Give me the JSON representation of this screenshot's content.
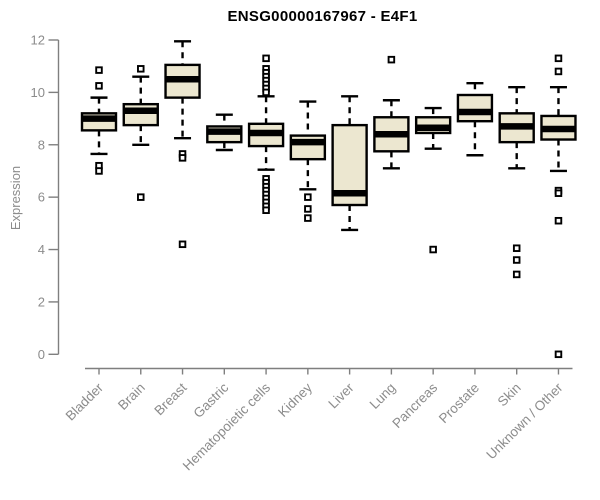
{
  "chart_data": {
    "type": "boxplot",
    "title": "ENSG00000167967 - E4F1",
    "ylabel": "Expression",
    "xlabel": "",
    "ylim": [
      0,
      12
    ],
    "yticks": [
      0,
      2,
      4,
      6,
      8,
      10,
      12
    ],
    "grid": false,
    "legend": "none",
    "colors": {
      "box_fill": "#ECE7D0",
      "box_border": "#000000",
      "median": "#000000",
      "whisker": "#000000",
      "outlier": "#000000",
      "axis": "#7f7f7f",
      "tick_label": "#8c8c8c",
      "title": "#000000",
      "background": "#ffffff"
    },
    "categories": [
      "Bladder",
      "Brain",
      "Breast",
      "Gastric",
      "Hematopoietic cells",
      "Kidney",
      "Liver",
      "Lung",
      "Pancreas",
      "Prostate",
      "Skin",
      "Unknown / Other"
    ],
    "series": [
      {
        "name": "Bladder",
        "whisker_low": 7.65,
        "q1": 8.55,
        "median": 9.0,
        "q3": 9.2,
        "whisker_high": 9.8,
        "outliers": [
          10.85,
          10.25,
          7.2,
          7.0
        ]
      },
      {
        "name": "Brain",
        "whisker_low": 8.0,
        "q1": 8.75,
        "median": 9.3,
        "q3": 9.55,
        "whisker_high": 10.6,
        "outliers": [
          10.9,
          6.0
        ]
      },
      {
        "name": "Breast",
        "whisker_low": 8.25,
        "q1": 9.8,
        "median": 10.5,
        "q3": 11.05,
        "whisker_high": 11.95,
        "outliers": [
          7.65,
          7.5,
          4.2
        ]
      },
      {
        "name": "Gastric",
        "whisker_low": 7.8,
        "q1": 8.1,
        "median": 8.5,
        "q3": 8.7,
        "whisker_high": 9.15,
        "outliers": []
      },
      {
        "name": "Hematopoietic cells",
        "whisker_low": 7.05,
        "q1": 7.95,
        "median": 8.45,
        "q3": 8.8,
        "whisker_high": 9.85,
        "outliers": [
          11.3,
          10.9,
          10.75,
          10.6,
          10.45,
          10.3,
          10.15,
          10.0,
          6.7,
          6.55,
          6.4,
          6.25,
          6.1,
          5.95,
          5.8,
          5.65,
          5.5
        ]
      },
      {
        "name": "Kidney",
        "whisker_low": 6.3,
        "q1": 7.45,
        "median": 8.1,
        "q3": 8.35,
        "whisker_high": 9.65,
        "outliers": [
          6.0,
          5.55,
          5.2
        ]
      },
      {
        "name": "Liver",
        "whisker_low": 4.75,
        "q1": 5.7,
        "median": 6.15,
        "q3": 8.75,
        "whisker_high": 9.85,
        "outliers": []
      },
      {
        "name": "Lung",
        "whisker_low": 7.1,
        "q1": 7.75,
        "median": 8.4,
        "q3": 9.05,
        "whisker_high": 9.7,
        "outliers": [
          11.25
        ]
      },
      {
        "name": "Pancreas",
        "whisker_low": 7.85,
        "q1": 8.45,
        "median": 8.65,
        "q3": 9.05,
        "whisker_high": 9.4,
        "outliers": [
          4.0
        ]
      },
      {
        "name": "Prostate",
        "whisker_low": 7.6,
        "q1": 8.9,
        "median": 9.25,
        "q3": 9.9,
        "whisker_high": 10.35,
        "outliers": []
      },
      {
        "name": "Skin",
        "whisker_low": 7.1,
        "q1": 8.1,
        "median": 8.7,
        "q3": 9.2,
        "whisker_high": 10.2,
        "outliers": [
          4.05,
          3.6,
          3.05
        ]
      },
      {
        "name": "Unknown / Other",
        "whisker_low": 7.0,
        "q1": 8.2,
        "median": 8.6,
        "q3": 9.1,
        "whisker_high": 10.2,
        "outliers": [
          11.3,
          10.8,
          6.25,
          6.15,
          5.1,
          0
        ]
      }
    ]
  }
}
